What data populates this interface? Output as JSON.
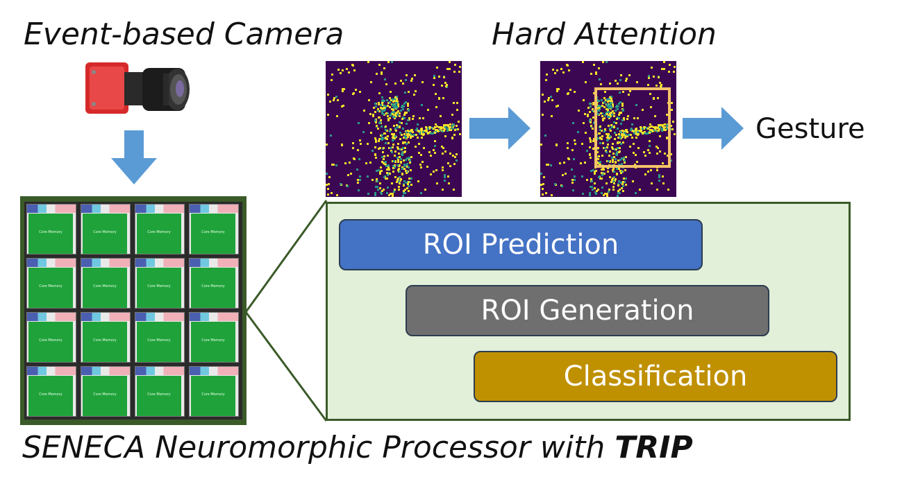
{
  "titles": {
    "camera": "Event-based Camera",
    "attention": "Hard Attention",
    "processor_prefix": "SENECA Neuromorphic Processor with ",
    "processor_bold": "TRIP"
  },
  "output_label": "Gesture",
  "pipeline": {
    "stages": [
      {
        "label": "ROI Prediction",
        "color": "#4472c4"
      },
      {
        "label": "ROI Generation",
        "color": "#6f6f6f"
      },
      {
        "label": "Classification",
        "color": "#bf9000"
      }
    ]
  },
  "chip": {
    "rows": 4,
    "cols": 4,
    "core_label": "Core Memory"
  },
  "colors": {
    "arrow": "#5b9bd5",
    "panel_fill": "#e2efd9",
    "panel_border": "#3a5a28",
    "frame_bg": "#3c0752",
    "event_yellow": "#f5e12a",
    "event_teal": "#2a9a8a",
    "roi_box": "#f5c36a"
  }
}
